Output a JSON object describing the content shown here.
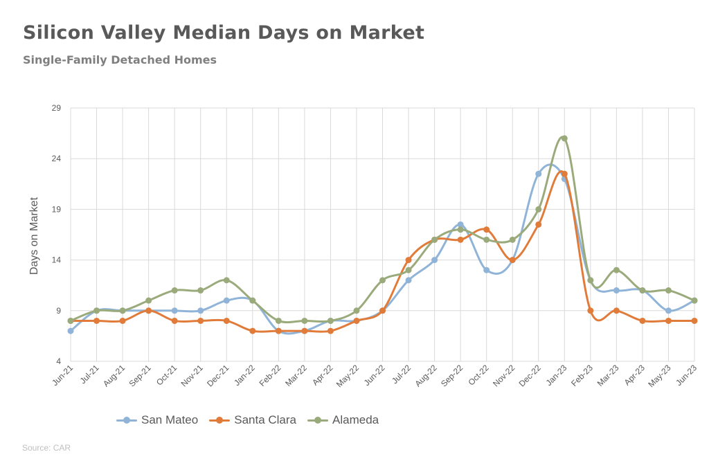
{
  "title": "Silicon Valley Median Days on Market",
  "subtitle": "Single-Family Detached Homes",
  "source": "Source: CAR",
  "chart_data": {
    "type": "line",
    "title": "Silicon Valley Median Days on Market",
    "subtitle": "Single-Family Detached Homes",
    "xlabel": "",
    "ylabel": "Days on Market",
    "ylim": [
      4,
      29
    ],
    "yticks": [
      4,
      9,
      14,
      19,
      24,
      29
    ],
    "grid": true,
    "legend_position": "bottom-left",
    "smooth": true,
    "categories": [
      "Jun-21",
      "Jul-21",
      "Aug-21",
      "Sep-21",
      "Oct-21",
      "Nov-21",
      "Dec-21",
      "Jan-22",
      "Feb-22",
      "Mar-22",
      "Apr-22",
      "May-22",
      "Jun-22",
      "Jul-22",
      "Aug-22",
      "Sep-22",
      "Oct-22",
      "Nov-22",
      "Dec-22",
      "Jan-23",
      "Feb-23",
      "Mar-23",
      "Apr-23",
      "May-23",
      "Jun-23"
    ],
    "series": [
      {
        "name": "San Mateo",
        "color": "#8fb4d8",
        "values": [
          7,
          9,
          9,
          9,
          9,
          9,
          10,
          10,
          7,
          7,
          8,
          8,
          9,
          12,
          14,
          17.5,
          13,
          14,
          22.5,
          22,
          12,
          11,
          11,
          9,
          10
        ]
      },
      {
        "name": "Santa Clara",
        "color": "#e07b39",
        "values": [
          8,
          8,
          8,
          9,
          8,
          8,
          8,
          7,
          7,
          7,
          7,
          8,
          9,
          14,
          16,
          16,
          17,
          14,
          17.5,
          22.5,
          9,
          9,
          8,
          8,
          8
        ]
      },
      {
        "name": "Alameda",
        "color": "#9aaa7b",
        "values": [
          8,
          9,
          9,
          10,
          11,
          11,
          12,
          10,
          8,
          8,
          8,
          9,
          12,
          13,
          16,
          17,
          16,
          16,
          19,
          26,
          12,
          13,
          11,
          11,
          10
        ]
      }
    ]
  }
}
